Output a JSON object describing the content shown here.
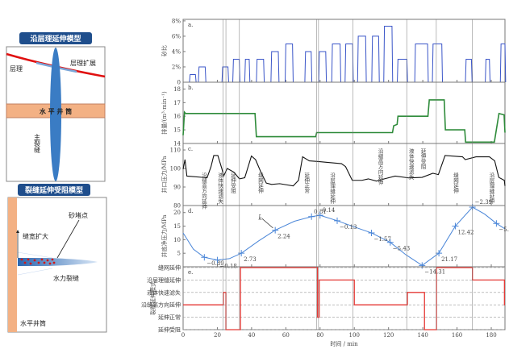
{
  "diagram_top": {
    "title": "沿层理延伸模型",
    "bedding": "层理",
    "bedding_expand": "层理扩展",
    "wellbore": "水 平 井 筒",
    "main_fracture": "主裂缝"
  },
  "diagram_bottom": {
    "title": "裂缝延伸受阻模型",
    "sand_plug": "砂堵点",
    "width_increase": "缝宽扩大",
    "hydraulic_fracture": "水力裂缝",
    "wellbore": "水平井筒"
  },
  "colors": {
    "sand": "#3a55c8",
    "rate": "#2e8b3a",
    "pressure": "#111111",
    "net": "#4a86d8",
    "mode": "#e53935",
    "badge": "#1f4e8c",
    "wellbore": "#f3b184"
  },
  "chart_data": [
    {
      "id": "a",
      "type": "line",
      "panel_label": "a.",
      "ylabel": "砂比",
      "ylim": [
        0,
        8.2
      ],
      "yticks": [
        0,
        2,
        4,
        6,
        8
      ],
      "ytick_labels": [
        "0",
        "2%",
        "4%",
        "6%",
        "8%"
      ],
      "pulses": [
        [
          4.1,
          7.2,
          1
        ],
        [
          9.3,
          12.9,
          2
        ],
        [
          23.1,
          26.2,
          2
        ],
        [
          29.4,
          32.8,
          3
        ],
        [
          36.4,
          38.6,
          3
        ],
        [
          43.2,
          47,
          3
        ],
        [
          51.7,
          55.6,
          4
        ],
        [
          60,
          63.9,
          5
        ],
        [
          71.5,
          74.8,
          4
        ],
        [
          79.6,
          83.3,
          4
        ],
        [
          87.2,
          91.7,
          5
        ],
        [
          95,
          99,
          5
        ],
        [
          102.3,
          106.6,
          6
        ],
        [
          110.6,
          114.2,
          6
        ],
        [
          117.6,
          122,
          7.3
        ],
        [
          125.5,
          130.7,
          3
        ],
        [
          135.7,
          142.8,
          5
        ],
        [
          146,
          151.1,
          5
        ],
        [
          165.3,
          168.4,
          3
        ],
        [
          176.9,
          178.9,
          3
        ],
        [
          185.7,
          188,
          5
        ]
      ]
    },
    {
      "id": "b",
      "type": "line",
      "panel_label": "b.",
      "ylabel": "排量/(m³·min⁻¹)",
      "ylim": [
        14,
        18.5
      ],
      "yticks": [
        14,
        15,
        16,
        17,
        18
      ],
      "ytick_labels": [
        "14",
        "15",
        "16",
        "17",
        "18"
      ],
      "x": [
        0,
        0.8,
        1.5,
        42,
        42.8,
        77.5,
        78,
        122.3,
        123,
        125,
        125.5,
        143,
        143.8,
        152.5,
        153.2,
        164.5,
        165,
        181.8,
        184.5,
        187.5,
        188
      ],
      "y": [
        14.6,
        16.3,
        16.2,
        16.2,
        14.5,
        14.5,
        14.8,
        14.8,
        15.3,
        15.4,
        16,
        16,
        17.2,
        17.2,
        15,
        15,
        14.1,
        14.1,
        16.2,
        16.1,
        14.8
      ]
    },
    {
      "id": "c",
      "type": "line",
      "panel_label": "c.",
      "ylabel": "井口压力/MPa",
      "ylim": [
        80,
        113.5
      ],
      "yticks": [
        80,
        90,
        100,
        110
      ],
      "ytick_labels": [
        "80",
        "90",
        "100",
        "110"
      ],
      "x": [
        0,
        1.1,
        2.2,
        14,
        16.3,
        17.9,
        20.3,
        22.6,
        23.7,
        25.8,
        29.7,
        32.9,
        36,
        39.9,
        42.3,
        45.4,
        48.6,
        51.7,
        56.4,
        64.3,
        67.4,
        69.8,
        73.7,
        78.4,
        92.5,
        94.9,
        98.8,
        104.4,
        108.2,
        112.9,
        117.6,
        123.9,
        131.8,
        139.6,
        145.9,
        149.1,
        153,
        163.2,
        164.8,
        171.1,
        178.9,
        182,
        184.4,
        187.6,
        188
      ],
      "y": [
        99.6,
        104.8,
        95.9,
        95,
        101,
        107,
        107,
        100,
        96,
        100,
        98,
        94.4,
        95,
        106.7,
        104.8,
        98.1,
        92.1,
        91.4,
        91.8,
        90.6,
        93.6,
        106.3,
        104.1,
        103.8,
        102.6,
        101,
        93.6,
        93.6,
        94.4,
        93.2,
        94.4,
        95.9,
        94.9,
        95.2,
        97.4,
        96.7,
        107,
        106.3,
        104.8,
        106.3,
        106.3,
        104.1,
        95.2,
        93.6,
        90.6
      ],
      "annotations": [
        {
          "t": 12,
          "text": "沿缝高方向延伸",
          "pos": "low"
        },
        {
          "t": 21.5,
          "text": "液体快速滤失",
          "pos": "low"
        },
        {
          "t": 29,
          "text": "延伸受阻",
          "pos": "low"
        },
        {
          "t": 45,
          "text": "缝网延伸",
          "pos": "low"
        },
        {
          "t": 72,
          "text": "延伸正常",
          "pos": "low"
        },
        {
          "t": 87,
          "text": "沿层理缝延伸",
          "pos": "low"
        },
        {
          "t": 115,
          "text": "沿缝高方向延伸",
          "pos": "high"
        },
        {
          "t": 133,
          "text": "液体快速滤失",
          "pos": "high"
        },
        {
          "t": 140,
          "text": "延伸受阻",
          "pos": "high"
        },
        {
          "t": 159,
          "text": "缝网延伸",
          "pos": "low"
        },
        {
          "t": 180,
          "text": "沿层理缝延伸",
          "pos": "low"
        }
      ]
    },
    {
      "id": "d",
      "type": "line",
      "panel_label": "d.",
      "ylabel": "井底净压力/MPa",
      "ylim": [
        0,
        22.6
      ],
      "yticks": [
        5,
        10,
        15,
        20
      ],
      "ytick_labels": [
        "5",
        "10",
        "15",
        "20"
      ],
      "k_label": "k̄",
      "curve_x": [
        0,
        6,
        12.4,
        20,
        27,
        34,
        44,
        53.8,
        65,
        75,
        80,
        90,
        100,
        110,
        121,
        130,
        139.6,
        149.4,
        159,
        169,
        176,
        183,
        188
      ],
      "curve_y": [
        12.5,
        6.5,
        3.5,
        2.5,
        3,
        5,
        9.5,
        13.5,
        16.8,
        18.5,
        19,
        17,
        14.7,
        12.5,
        9,
        4.5,
        0.5,
        5,
        15,
        22,
        19.5,
        16,
        14
      ],
      "points": [
        {
          "t": 12.4,
          "v": 3.5,
          "k": "−0.89"
        },
        {
          "t": 20,
          "v": 2.5,
          "k": "−0.18"
        },
        {
          "t": 34,
          "v": 5,
          "k": "2.73"
        },
        {
          "t": 53.8,
          "v": 13.5,
          "k": "2.24"
        },
        {
          "t": 75,
          "v": 18.5,
          "k": "0.81"
        },
        {
          "t": 80,
          "v": 19,
          "k": "0.14"
        },
        {
          "t": 90,
          "v": 17,
          "k": "−0.13"
        },
        {
          "t": 110,
          "v": 12.5,
          "k": "−1.57"
        },
        {
          "t": 121,
          "v": 9,
          "k": "−5.43"
        },
        {
          "t": 139.6,
          "v": 0.5,
          "k": "−14.31"
        },
        {
          "t": 149.4,
          "v": 5,
          "k": "21.17"
        },
        {
          "t": 159,
          "v": 15,
          "k": "12.42"
        },
        {
          "t": 169,
          "v": 22,
          "k": "−2.39"
        },
        {
          "t": 183,
          "v": 16,
          "k": "−5.07"
        }
      ]
    },
    {
      "id": "e",
      "type": "line",
      "panel_label": "e.",
      "ylabel": "裂缝延伸模式",
      "categories": [
        "延伸受阻",
        "延伸正常",
        "沿缝高方向延伸",
        "液体快速滤失",
        "沿层理缝延伸",
        "缝网延伸"
      ],
      "steps": [
        [
          0,
          23.5,
          2
        ],
        [
          23.5,
          25,
          3
        ],
        [
          25,
          33.5,
          0
        ],
        [
          33.5,
          78.5,
          5
        ],
        [
          78.5,
          79.5,
          1
        ],
        [
          79.5,
          100,
          4
        ],
        [
          100,
          131,
          2
        ],
        [
          131,
          141,
          3
        ],
        [
          141,
          148,
          0
        ],
        [
          148,
          169,
          5
        ],
        [
          169,
          187.7,
          4
        ],
        [
          187.7,
          188,
          2
        ]
      ]
    }
  ],
  "x_axis": {
    "label": "时间 / min",
    "xlim": [
      0,
      188
    ],
    "ticks": [
      0,
      20,
      40,
      60,
      80,
      100,
      120,
      140,
      160,
      180
    ],
    "tick_labels": [
      "0",
      "20",
      "40",
      "60",
      "80",
      "100",
      "120",
      "140",
      "160",
      "180"
    ]
  },
  "stage_lines": [
    23.4,
    25,
    32.9,
    77.9,
    79.1,
    99.1,
    130.6,
    147.9,
    169
  ]
}
